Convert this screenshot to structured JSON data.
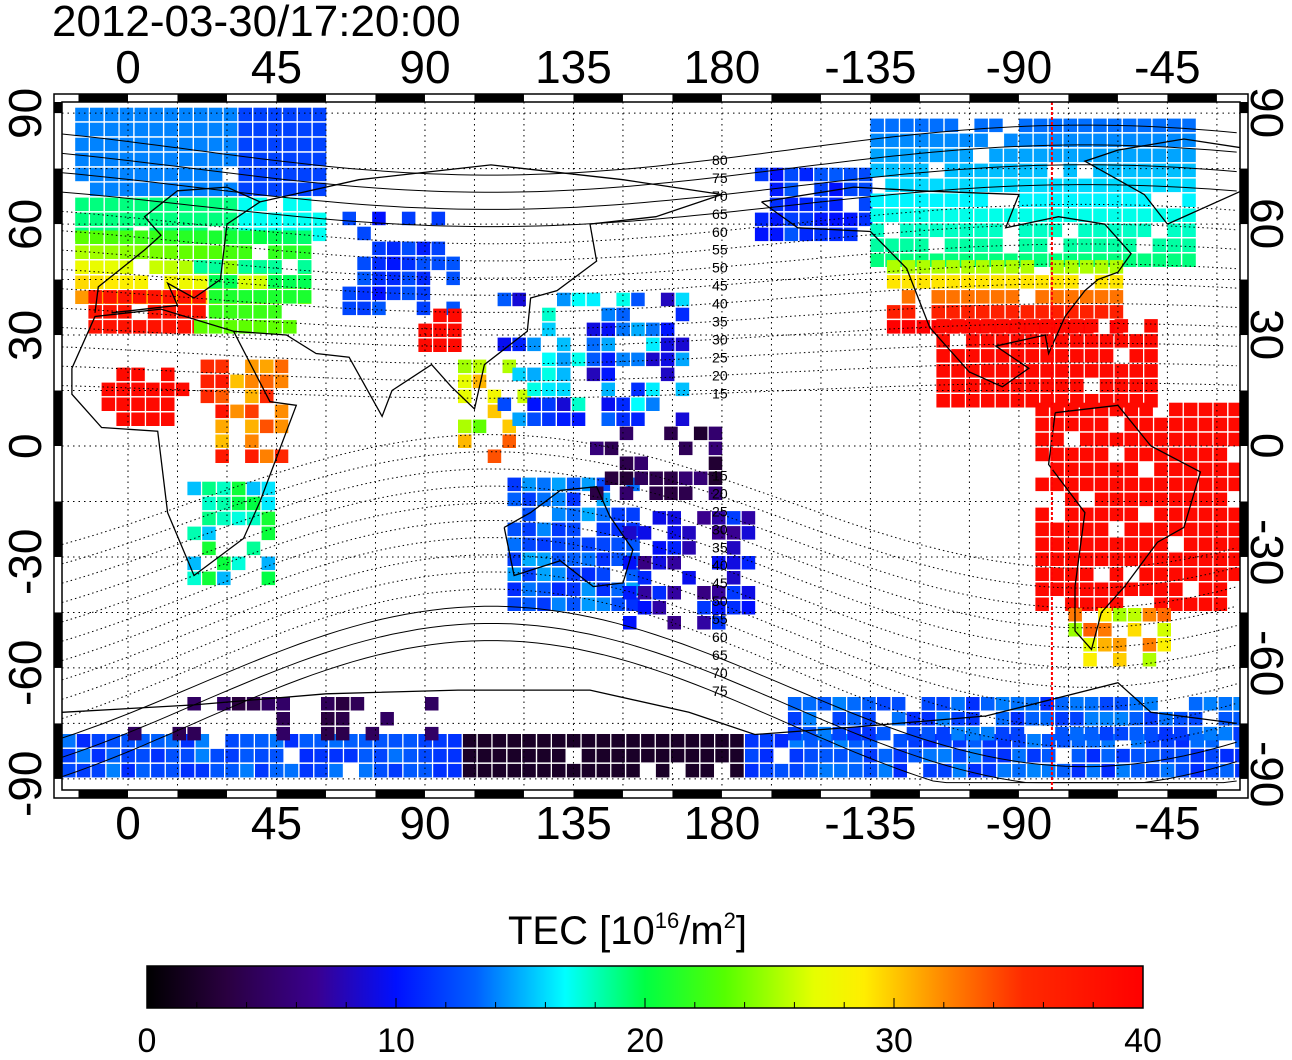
{
  "title": "2012-03-30/17:20:00",
  "map": {
    "x_ticks": [
      "0",
      "45",
      "90",
      "135",
      "180",
      "-135",
      "-90",
      "-45"
    ],
    "x_tick_lon": [
      0,
      45,
      90,
      135,
      180,
      225,
      270,
      315
    ],
    "y_ticks": [
      "90",
      "60",
      "30",
      "0",
      "-30",
      "-60",
      "-90"
    ],
    "y_tick_lat": [
      90,
      60,
      30,
      0,
      -30,
      -60,
      -90
    ],
    "lon_range": [
      -20,
      337
    ],
    "lat_range": [
      -93,
      93
    ],
    "gridlines": "dotted",
    "marker_longitude": 280,
    "marker_color": "#ff0000",
    "contour_labels": [
      "80",
      "75",
      "70",
      "65",
      "60",
      "55",
      "50",
      "45",
      "40",
      "35",
      "30",
      "25",
      "20",
      "15",
      "15",
      "20",
      "25",
      "30",
      "35",
      "40",
      "45",
      "50",
      "55",
      "60",
      "65",
      "70",
      "75"
    ]
  },
  "colorbar": {
    "title_prefix": "TEC  [10",
    "title_exp": "16",
    "title_mid": "/m",
    "title_exp2": "2",
    "title_suffix": "]",
    "min": 0,
    "max": 40,
    "ticks": [
      "0",
      "10",
      "20",
      "30",
      "40"
    ],
    "colors": [
      "#000000",
      "#3a0066",
      "#2a00b0",
      "#0022ff",
      "#0088ff",
      "#00ffff",
      "#00ff66",
      "#33ff00",
      "#ccff00",
      "#ffff00",
      "#ff9900",
      "#ff3300",
      "#ff0000"
    ]
  }
}
